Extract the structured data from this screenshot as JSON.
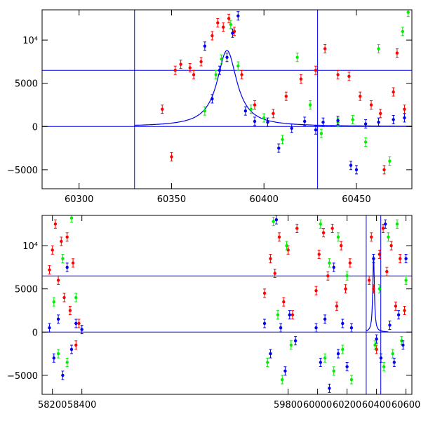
{
  "chart_data": [
    {
      "type": "scatter",
      "panel": "top",
      "title": "",
      "xlabel": "",
      "ylabel": "",
      "xlim": [
        60280,
        60480
      ],
      "ylim": [
        -7200,
        13500
      ],
      "x_ticks": [
        60300,
        60350,
        60400,
        60450
      ],
      "x_tick_labels": [
        "60300",
        "60350",
        "60400",
        "60450"
      ],
      "y_ticks": [
        -5000,
        0,
        5000,
        10000
      ],
      "y_tick_labels": [
        "−5000",
        "0",
        "5000",
        "10⁴"
      ],
      "vertical_lines": [
        60330,
        60429
      ],
      "horizontal_lines": [
        0,
        6500
      ],
      "model_curve": {
        "color": "#0000ee",
        "peak_x": 60380,
        "peak_y": 8800,
        "start_x": 60330,
        "end_x": 60480
      },
      "series": [
        {
          "color": "#ff0000",
          "points": [
            [
              60345,
              2000
            ],
            [
              60352,
              6500
            ],
            [
              60355,
              7200
            ],
            [
              60360,
              6800
            ],
            [
              60362,
              6000
            ],
            [
              60366,
              7500
            ],
            [
              60372,
              10500
            ],
            [
              60375,
              12000
            ],
            [
              60378,
              11500
            ],
            [
              60381,
              12500
            ],
            [
              60384,
              11000
            ],
            [
              60388,
              6000
            ],
            [
              60395,
              2500
            ],
            [
              60405,
              1500
            ],
            [
              60412,
              3500
            ],
            [
              60420,
              5500
            ],
            [
              60428,
              6500
            ],
            [
              60433,
              9000
            ],
            [
              60440,
              6000
            ],
            [
              60446,
              5800
            ],
            [
              60452,
              3500
            ],
            [
              60458,
              2500
            ],
            [
              60463,
              1500
            ],
            [
              60470,
              4000
            ],
            [
              60476,
              2000
            ],
            [
              60350,
              -3500
            ],
            [
              60465,
              -5000
            ],
            [
              60472,
              8500
            ]
          ]
        },
        {
          "color": "#00ee00",
          "points": [
            [
              60368,
              1800
            ],
            [
              60374,
              6000
            ],
            [
              60377,
              7800
            ],
            [
              60382,
              11800
            ],
            [
              60386,
              7000
            ],
            [
              60393,
              2000
            ],
            [
              60400,
              1000
            ],
            [
              60410,
              -1500
            ],
            [
              60418,
              8000
            ],
            [
              60425,
              2500
            ],
            [
              60431,
              -800
            ],
            [
              60440,
              500
            ],
            [
              60448,
              800
            ],
            [
              60455,
              -1800
            ],
            [
              60462,
              9000
            ],
            [
              60468,
              -4000
            ],
            [
              60475,
              11000
            ],
            [
              60478,
              13200
            ]
          ]
        },
        {
          "color": "#0000ee",
          "points": [
            [
              60368,
              9300
            ],
            [
              60372,
              3200
            ],
            [
              60376,
              6500
            ],
            [
              60380,
              8000
            ],
            [
              60383,
              10800
            ],
            [
              60386,
              12800
            ],
            [
              60390,
              1800
            ],
            [
              60395,
              600
            ],
            [
              60402,
              500
            ],
            [
              60408,
              -2500
            ],
            [
              60415,
              -200
            ],
            [
              60422,
              600
            ],
            [
              60428,
              -400
            ],
            [
              60432,
              500
            ],
            [
              60440,
              700
            ],
            [
              60447,
              -4500
            ],
            [
              60450,
              -5000
            ],
            [
              60455,
              300
            ],
            [
              60462,
              500
            ],
            [
              60470,
              800
            ],
            [
              60476,
              1000
            ]
          ]
        }
      ]
    },
    {
      "type": "scatter",
      "panel": "bottom",
      "title": "",
      "xlabel": "",
      "ylabel": "",
      "xlim": [
        58130,
        60640
      ],
      "ylim": [
        -7200,
        13500
      ],
      "x_ticks": [
        58200,
        58400,
        59800,
        60000,
        60200,
        60400,
        60600
      ],
      "x_tick_labels": [
        "58200",
        "58400",
        "59800",
        "60000",
        "60200",
        "60400",
        "60600"
      ],
      "y_ticks": [
        -5000,
        0,
        5000,
        10000
      ],
      "y_tick_labels": [
        "−5000",
        "0",
        "5000",
        "10⁴"
      ],
      "vertical_lines": [
        60330,
        60429
      ],
      "horizontal_lines": [
        0,
        6500
      ],
      "model_curve": {
        "color": "#0000ee",
        "peak_x": 60380,
        "peak_y": 8800,
        "start_x": 60330,
        "end_x": 60480
      },
      "series": [
        {
          "color": "#ff0000",
          "points": [
            [
              58180,
              7200
            ],
            [
              58200,
              9500
            ],
            [
              58220,
              12500
            ],
            [
              58240,
              6000
            ],
            [
              58260,
              10500
            ],
            [
              58280,
              4000
            ],
            [
              58300,
              11000
            ],
            [
              58320,
              2500
            ],
            [
              58340,
              8000
            ],
            [
              58360,
              -1500
            ],
            [
              58380,
              1000
            ],
            [
              59640,
              4500
            ],
            [
              59680,
              8500
            ],
            [
              59710,
              6800
            ],
            [
              59740,
              11000
            ],
            [
              59770,
              3500
            ],
            [
              59800,
              9500
            ],
            [
              59830,
              2000
            ],
            [
              59860,
              12000
            ],
            [
              59990,
              4800
            ],
            [
              60010,
              9000
            ],
            [
              60040,
              11500
            ],
            [
              60070,
              6500
            ],
            [
              60100,
              12000
            ],
            [
              60130,
              3000
            ],
            [
              60160,
              10000
            ],
            [
              60190,
              5000
            ],
            [
              60220,
              8000
            ],
            [
              60350,
              6000
            ],
            [
              60365,
              11000
            ],
            [
              60380,
              5000
            ],
            [
              60400,
              -2000
            ],
            [
              60420,
              9000
            ],
            [
              60445,
              12000
            ],
            [
              60470,
              7000
            ],
            [
              60500,
              10000
            ],
            [
              60530,
              3000
            ],
            [
              60560,
              8500
            ],
            [
              60590,
              2500
            ]
          ]
        },
        {
          "color": "#00ee00",
          "points": [
            [
              58210,
              3500
            ],
            [
              58240,
              -2500
            ],
            [
              58270,
              8500
            ],
            [
              58300,
              -3500
            ],
            [
              58330,
              13200
            ],
            [
              58360,
              4000
            ],
            [
              59660,
              -3500
            ],
            [
              59700,
              12800
            ],
            [
              59730,
              2000
            ],
            [
              59760,
              -5500
            ],
            [
              59790,
              10000
            ],
            [
              59820,
              -1500
            ],
            [
              60020,
              12500
            ],
            [
              60050,
              -3000
            ],
            [
              60080,
              8000
            ],
            [
              60110,
              -4500
            ],
            [
              60140,
              11000
            ],
            [
              60170,
              -2000
            ],
            [
              60200,
              6500
            ],
            [
              60230,
              -5500
            ],
            [
              60390,
              -1500
            ],
            [
              60420,
              5000
            ],
            [
              60450,
              -4000
            ],
            [
              60480,
              11000
            ],
            [
              60510,
              -2500
            ],
            [
              60540,
              12500
            ],
            [
              60570,
              -1000
            ],
            [
              60600,
              6000
            ]
          ]
        },
        {
          "color": "#0000ee",
          "points": [
            [
              58180,
              500
            ],
            [
              58210,
              -3000
            ],
            [
              58240,
              1500
            ],
            [
              58270,
              -5000
            ],
            [
              58300,
              7500
            ],
            [
              58330,
              -2000
            ],
            [
              58360,
              1000
            ],
            [
              58400,
              300
            ],
            [
              59640,
              1000
            ],
            [
              59680,
              -2500
            ],
            [
              59720,
              13000
            ],
            [
              59750,
              500
            ],
            [
              59780,
              -4500
            ],
            [
              59810,
              2000
            ],
            [
              59850,
              -1000
            ],
            [
              59990,
              500
            ],
            [
              60020,
              -3500
            ],
            [
              60050,
              1500
            ],
            [
              60080,
              -6500
            ],
            [
              60110,
              7500
            ],
            [
              60140,
              -2500
            ],
            [
              60170,
              1000
            ],
            [
              60200,
              -4000
            ],
            [
              60230,
              500
            ],
            [
              60380,
              8500
            ],
            [
              60400,
              -800
            ],
            [
              60430,
              -3000
            ],
            [
              60460,
              12500
            ],
            [
              60490,
              800
            ],
            [
              60520,
              -3500
            ],
            [
              60550,
              2000
            ],
            [
              60580,
              -1500
            ],
            [
              60600,
              8500
            ]
          ]
        }
      ]
    }
  ]
}
